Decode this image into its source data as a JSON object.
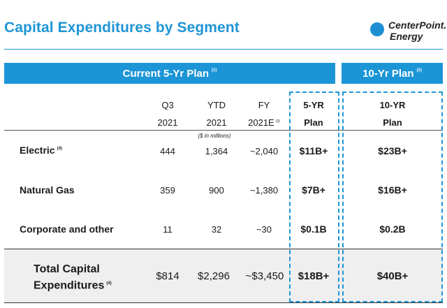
{
  "title": "Capital Expenditures by Segment",
  "logo": {
    "line1": "CenterPoint.",
    "line2": "Energy",
    "accent_color": "#1e8fd3"
  },
  "bands": {
    "current_plan": "Current 5-Yr Plan",
    "current_plan_note": "(1)",
    "ten_yr_plan": "10-Yr Plan",
    "ten_yr_plan_note": "(2)"
  },
  "columns": {
    "q3": {
      "line1": "Q3",
      "line2": "2021"
    },
    "ytd": {
      "line1": "YTD",
      "line2": "2021"
    },
    "fy": {
      "line1": "FY",
      "line2": "2021E",
      "note": "(3)"
    },
    "five_yr": {
      "line1": "5-YR",
      "line2": "Plan"
    },
    "ten_yr": {
      "line1": "10-YR",
      "line2": "Plan"
    },
    "units_note": "($ in millions)"
  },
  "rows": [
    {
      "label": "Electric",
      "note": "(4)",
      "q3": "444",
      "ytd": "1,364",
      "fy": "~2,040",
      "five_yr": "$11B+",
      "ten_yr": "$23B+"
    },
    {
      "label": "Natural Gas",
      "note": "",
      "q3": "359",
      "ytd": "900",
      "fy": "~1,380",
      "five_yr": "$7B+",
      "ten_yr": "$16B+"
    },
    {
      "label": "Corporate and other",
      "note": "",
      "q3": "11",
      "ytd": "32",
      "fy": "~30",
      "five_yr": "$0.1B",
      "ten_yr": "$0.2B"
    }
  ],
  "total": {
    "label_line1": "Total Capital",
    "label_line2": "Expenditures",
    "note": "(4)",
    "q3": "$814",
    "ytd": "$2,296",
    "fy": "~$3,450",
    "five_yr": "$18B+",
    "ten_yr": "$40B+"
  },
  "colors": {
    "brand_blue": "#1b95d6",
    "title_blue": "#1f95d6",
    "total_bg": "#efefef"
  }
}
